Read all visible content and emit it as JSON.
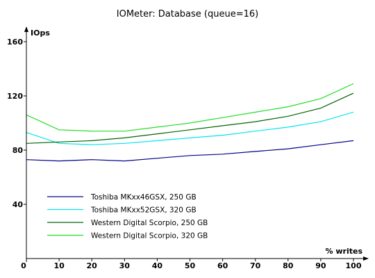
{
  "chart_data": {
    "type": "line",
    "title": "IOMeter: Database (queue=16)",
    "xlabel": "% writes",
    "ylabel": "IOps",
    "x": [
      0,
      10,
      20,
      30,
      40,
      50,
      60,
      70,
      80,
      90,
      100
    ],
    "xlim": [
      0,
      100
    ],
    "ylim": [
      0,
      160
    ],
    "x_ticks": [
      "0",
      "10",
      "20",
      "30",
      "40",
      "50",
      "60",
      "70",
      "80",
      "90",
      "100"
    ],
    "y_ticks": [
      "40",
      "80",
      "120",
      "160"
    ],
    "grid": false,
    "legend_position": "bottom-left",
    "series": [
      {
        "name": "Toshiba MKxx46GSX, 250 GB",
        "color": "#00008b",
        "values": [
          73,
          72,
          73,
          72,
          74,
          76,
          77,
          79,
          81,
          84,
          87
        ]
      },
      {
        "name": "Toshiba MKxx52GSX, 320 GB",
        "color": "#00e5ee",
        "values": [
          93,
          85,
          84,
          85,
          87,
          89,
          91,
          94,
          97,
          101,
          108
        ]
      },
      {
        "name": "Western Digital Scorpio, 250 GB",
        "color": "#006400",
        "values": [
          85,
          86,
          87,
          89,
          92,
          95,
          98,
          101,
          105,
          111,
          122
        ]
      },
      {
        "name": "Western Digital Scorpio, 320 GB",
        "color": "#22dd22",
        "values": [
          106,
          95,
          94,
          94,
          97,
          100,
          104,
          108,
          112,
          118,
          129
        ]
      }
    ]
  }
}
